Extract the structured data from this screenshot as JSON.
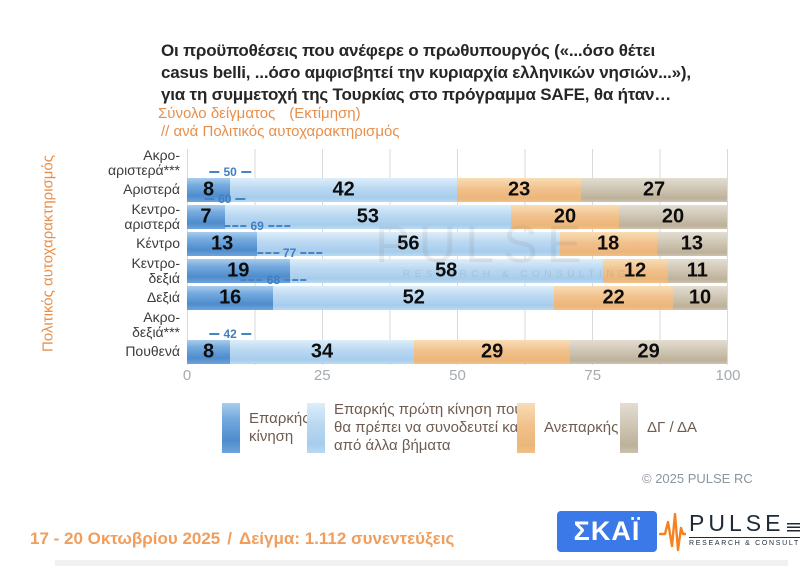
{
  "header": {
    "title_lines": [
      "Οι προϋποθέσεις που ανέφερε ο πρωθυπουργός («...όσο θέτει",
      "casus belli,  ...όσο αμφισβητεί την κυριαρχία ελληνικών νησιών...»),",
      "για τη συμμετοχή της Τουρκίας στο πρόγραμμα SAFE, θα ήταν…"
    ],
    "subtitle_sample": "Σύνολο δείγματος",
    "subtitle_estimate": "(Εκτίμηση)",
    "subtitle_breakdown": "// ανά Πολιτικός αυτοχαρακτηρισμός"
  },
  "chart_data": {
    "type": "bar",
    "orientation": "horizontal",
    "stacked": true,
    "y_axis_title": "Πολιτικός αυτοχαρακτηρισμός",
    "categories": [
      "Ακρο-αριστερά***",
      "Αριστερά",
      "Κεντρο-αριστερά",
      "Κέντρο",
      "Κεντρο-δεξιά",
      "Δεξιά",
      "Ακρο-δεξιά***",
      "Πουθενά"
    ],
    "series": [
      {
        "name": "Επαρκής κίνηση",
        "color": "#5b95d6",
        "values": [
          null,
          8,
          7,
          13,
          19,
          16,
          null,
          8
        ]
      },
      {
        "name": "Επαρκής πρώτη κίνηση που θα πρέπει να συνοδευτεί και από άλλα βήματα",
        "color": "#b9d8f2",
        "values": [
          null,
          42,
          53,
          56,
          58,
          52,
          null,
          34
        ]
      },
      {
        "name": "Ανεπαρκής",
        "color": "#f1c08a",
        "values": [
          null,
          23,
          20,
          18,
          12,
          22,
          null,
          29
        ]
      },
      {
        "name": "ΔΓ / ΔΑ",
        "color": "#cdc3b0",
        "values": [
          null,
          27,
          20,
          13,
          11,
          10,
          null,
          29
        ]
      }
    ],
    "adequate_total_annotations": [
      null,
      50,
      60,
      69,
      77,
      68,
      null,
      42
    ],
    "annotation_color": "#4584c6",
    "x_ticks": [
      0,
      25,
      50,
      75,
      100
    ],
    "xlim": [
      0,
      100
    ],
    "gridline_step": 12.5,
    "grid": true,
    "legend_position": "bottom"
  },
  "legend": {
    "items": [
      {
        "label": "Επαρκής κίνηση"
      },
      {
        "label": "Επαρκής πρώτη κίνηση που θα πρέπει να συνοδευτεί και από άλλα βήματα"
      },
      {
        "label": "Ανεπαρκής"
      },
      {
        "label": "ΔΓ / ΔΑ"
      }
    ]
  },
  "watermark": {
    "line1": "PULSE",
    "line2": "RESEARCH & CONSULTING"
  },
  "copyright": "© 2025 PULSE RC",
  "footer": {
    "date_range": "17 - 20 Οκτωβρίου 2025",
    "separator": "/",
    "sample": "Δείγμα:  1.112 συνεντεύξεις"
  },
  "logos": {
    "skai": "ΣΚΑΪ",
    "pulse_word": "PULSE",
    "pulse_sub": "RESEARCH & CONSULTING"
  }
}
